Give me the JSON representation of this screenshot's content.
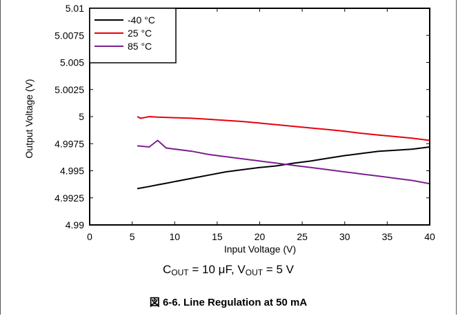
{
  "chart_data": {
    "type": "line",
    "xlabel": "Input Voltage (V)",
    "ylabel": "Output Voltage (V)",
    "xlim": [
      0,
      40
    ],
    "ylim": [
      4.99,
      5.01
    ],
    "xticks": [
      "0",
      "5",
      "10",
      "15",
      "20",
      "25",
      "30",
      "35",
      "40"
    ],
    "yticks": [
      "4.99",
      "4.9925",
      "4.995",
      "4.9975",
      "5",
      "5.0025",
      "5.005",
      "5.0075",
      "5.01"
    ],
    "grid": false,
    "legend_position": "top-left",
    "series": [
      {
        "name": "-40  °C",
        "color": "#000000",
        "x": [
          5.6,
          7,
          8,
          9,
          10,
          12,
          14,
          16,
          18,
          20,
          22,
          24,
          26,
          28,
          30,
          32,
          34,
          36,
          38,
          40
        ],
        "y": [
          4.99335,
          4.99355,
          4.9937,
          4.99385,
          4.994,
          4.9943,
          4.9946,
          4.9949,
          4.9951,
          4.9953,
          4.99545,
          4.9957,
          4.9959,
          4.99615,
          4.9964,
          4.9966,
          4.9968,
          4.9969,
          4.997,
          4.9972
        ]
      },
      {
        "name": "25 °C",
        "color": "#e8000b",
        "x": [
          5.6,
          6,
          6.5,
          7,
          8,
          10,
          12,
          14,
          16,
          18,
          20,
          22,
          24,
          26,
          28,
          30,
          32,
          34,
          36,
          38,
          40
        ],
        "y": [
          5.0,
          4.99985,
          4.99992,
          5.0,
          4.99995,
          4.9999,
          4.99985,
          4.99975,
          4.99965,
          4.99955,
          4.9994,
          4.99925,
          4.9991,
          4.99895,
          4.9988,
          4.99865,
          4.99845,
          4.9983,
          4.99815,
          4.998,
          4.9978
        ]
      },
      {
        "name": "85 °C",
        "color": "#7b1f8c",
        "x": [
          5.6,
          7,
          8,
          9,
          10,
          12,
          14,
          16,
          18,
          20,
          22,
          24,
          26,
          28,
          30,
          32,
          34,
          36,
          38,
          40
        ],
        "y": [
          4.9973,
          4.9972,
          4.9978,
          4.9971,
          4.997,
          4.9968,
          4.9965,
          4.9963,
          4.9961,
          4.9959,
          4.9957,
          4.9955,
          4.9953,
          4.9951,
          4.9949,
          4.9947,
          4.9945,
          4.9943,
          4.9941,
          4.9938
        ]
      }
    ]
  },
  "condition": {
    "c_main": "C",
    "c_sub": "OUT",
    "c_rest": " = 10 μF, V",
    "v_sub": "OUT",
    "v_rest": " = 5 V"
  },
  "caption": "図 6-6. Line Regulation at 50 mA"
}
